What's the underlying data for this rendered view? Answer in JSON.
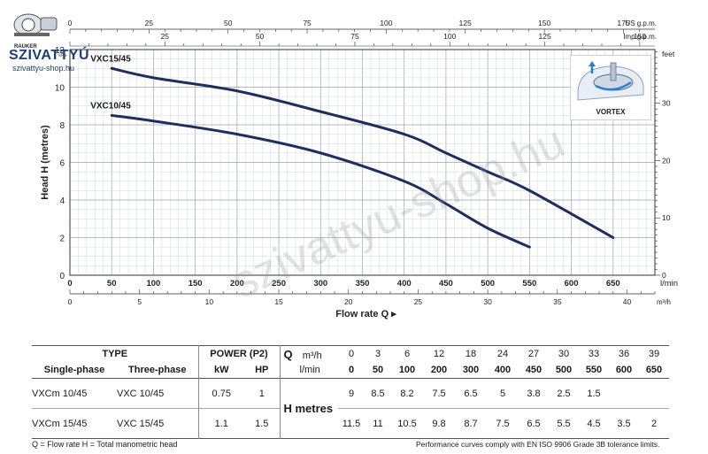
{
  "logo": {
    "small": "RAUKER",
    "brand": "SZIVATTYÚ",
    "url": "szivattyu-shop.hu"
  },
  "watermark": "szivattyu-shop.hu",
  "vortex": {
    "label": "VORTEX"
  },
  "chart_data": {
    "type": "line",
    "ylabel": "Head H (metres)",
    "xlabel": "Flow rate Q",
    "ylim": [
      0,
      12
    ],
    "xlim": [
      0,
      700
    ],
    "y_ticks": [
      0,
      2,
      4,
      6,
      8,
      10,
      12
    ],
    "x_ticks_lmin": [
      0,
      50,
      100,
      150,
      200,
      250,
      300,
      350,
      400,
      450,
      500,
      550,
      600,
      650
    ],
    "x_unit_lmin": "l/min",
    "x_ticks_m3h": [
      0,
      5,
      10,
      15,
      20,
      25,
      30,
      35,
      40
    ],
    "x_unit_m3h": "m³/h",
    "top_ticks_us": [
      0,
      25,
      50,
      75,
      100,
      125,
      150,
      175
    ],
    "top_unit_us": "US g.p.m.",
    "top_ticks_imp": [
      25,
      50,
      75,
      100,
      125,
      150
    ],
    "top_unit_imp": "Imp g.p.m.",
    "right_ticks_feet": [
      0,
      10,
      20,
      30
    ],
    "right_unit": "feet",
    "kpa_label": "kPa",
    "series": [
      {
        "name": "VXC15/45",
        "x": [
          50,
          100,
          200,
          300,
          400,
          450,
          500,
          550,
          650
        ],
        "y": [
          11,
          10.5,
          9.8,
          8.7,
          7.5,
          6.5,
          5.5,
          4.5,
          2
        ]
      },
      {
        "name": "VXC10/45",
        "x": [
          50,
          100,
          200,
          300,
          400,
          450,
          500,
          550
        ],
        "y": [
          8.5,
          8.2,
          7.5,
          6.5,
          5,
          3.8,
          2.5,
          1.5
        ]
      }
    ],
    "grid": true
  },
  "table": {
    "type_hdr": "TYPE",
    "power_hdr": "POWER (P2)",
    "single_hdr": "Single-phase",
    "three_hdr": "Three-phase",
    "kw_hdr": "kW",
    "hp_hdr": "HP",
    "q_label": "Q",
    "q_unit_m3h": "m³/h",
    "q_unit_lmin": "l/min",
    "q_m3h": [
      "0",
      "3",
      "6",
      "12",
      "18",
      "24",
      "27",
      "30",
      "33",
      "36",
      "39"
    ],
    "q_lmin": [
      "0",
      "50",
      "100",
      "200",
      "300",
      "400",
      "450",
      "500",
      "550",
      "600",
      "650"
    ],
    "h_label": "H metres",
    "rows": [
      {
        "single": "VXCm 10/45",
        "three": "VXC 10/45",
        "kw": "0.75",
        "hp": "1",
        "h": [
          "9",
          "8.5",
          "8.2",
          "7.5",
          "6.5",
          "5",
          "3.8",
          "2.5",
          "1.5",
          "",
          ""
        ]
      },
      {
        "single": "VXCm 15/45",
        "three": "VXC 15/45",
        "kw": "1.1",
        "hp": "1.5",
        "h": [
          "11.5",
          "11",
          "10.5",
          "9.8",
          "8.7",
          "7.5",
          "6.5",
          "5.5",
          "4.5",
          "3.5",
          "2"
        ]
      }
    ]
  },
  "footer": {
    "left": "Q = Flow rate  H = Total manometric head",
    "right": "Performance curves comply with EN ISO 9906 Grade 3B tolerance limits."
  }
}
